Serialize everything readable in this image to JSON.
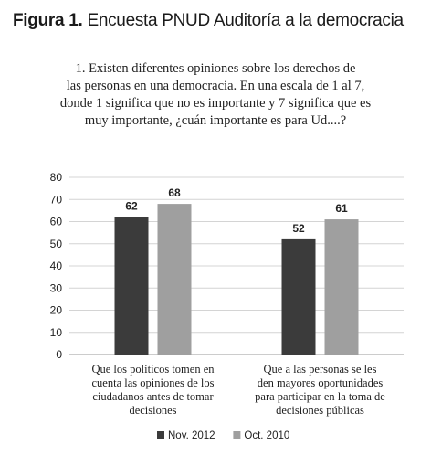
{
  "figure": {
    "label": "Figura 1.",
    "title": "Encuesta PNUD Auditoría a la democracia"
  },
  "question_lines": [
    "1. Existen diferentes opiniones sobre los derechos de",
    "las personas en una democracia. En una escala de 1 al 7,",
    "donde 1 significa que no es importante y 7 significa que es",
    "muy importante, ¿cuán importante es para Ud....?"
  ],
  "chart_data": {
    "type": "bar",
    "categories": [
      [
        "Que los políticos tomen en",
        "cuenta las opiniones de los",
        "ciudadanos antes de tomar",
        "decisiones"
      ],
      [
        "Que a las personas se les",
        "den  mayores oportunidades",
        "para participar en la toma de",
        "decisiones públicas"
      ]
    ],
    "series": [
      {
        "name": "Nov. 2012",
        "color": "#3b3b3b",
        "values": [
          62,
          52
        ]
      },
      {
        "name": "Oct. 2010",
        "color": "#9f9f9f",
        "values": [
          68,
          61
        ]
      }
    ],
    "yticks": [
      0,
      10,
      20,
      30,
      40,
      50,
      60,
      70,
      80
    ],
    "ylim": [
      0,
      80
    ],
    "grid": true,
    "legend_position": "bottom",
    "data_labels": true
  }
}
